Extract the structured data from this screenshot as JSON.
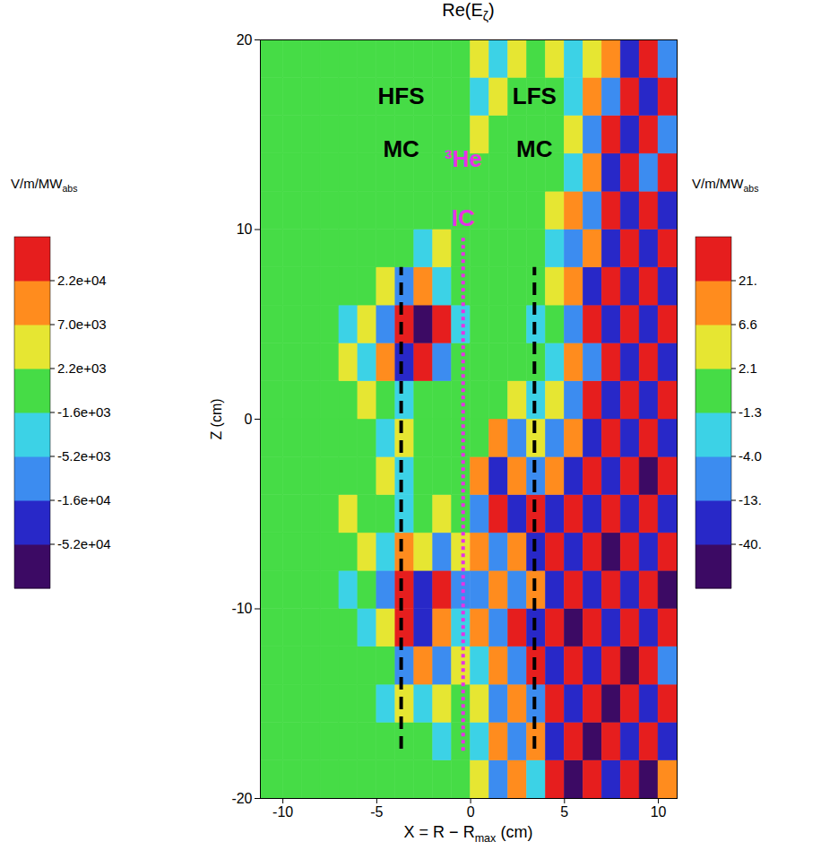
{
  "chart_data": {
    "type": "heatmap",
    "title": [
      "Re(E",
      "ζ",
      ")"
    ],
    "x_label": [
      "X = R − R",
      "max",
      " (cm)"
    ],
    "y_label": "Z (cm)",
    "xlim": [
      -11.2,
      11
    ],
    "xticks": [
      -10,
      -5,
      0,
      5,
      10
    ],
    "ylim": [
      -20,
      20
    ],
    "yticks": [
      -20,
      -10,
      0,
      10,
      20
    ],
    "fields": [
      {
        "x_edges": [
          -11.2,
          -10,
          -9,
          -8,
          -7,
          -6,
          -5,
          -4,
          -3,
          -2,
          -1,
          0
        ],
        "z_edges": [
          -20,
          -18,
          -16,
          -14,
          -12,
          -10,
          -8,
          -6,
          -4,
          -2,
          0,
          2,
          4,
          6,
          8,
          10,
          12,
          14,
          16,
          18,
          20
        ],
        "values": [
          [
            0,
            0,
            0,
            0,
            0,
            0,
            0,
            0,
            0,
            0,
            0
          ],
          [
            0,
            0,
            0,
            0,
            0,
            0,
            0,
            0,
            0,
            -3000,
            0
          ],
          [
            0,
            0,
            0,
            0,
            0,
            0,
            -3000,
            3000,
            -3000,
            3000,
            0
          ],
          [
            0,
            0,
            0,
            0,
            0,
            0,
            0,
            -10000,
            10000,
            -10000,
            3000
          ],
          [
            0,
            0,
            0,
            0,
            0,
            -3000,
            3000,
            30000,
            -30000,
            10000,
            -3000
          ],
          [
            0,
            0,
            0,
            0,
            -3000,
            0,
            -10000,
            30000,
            -30000,
            30000,
            -10000
          ],
          [
            0,
            0,
            0,
            0,
            0,
            3000,
            -3000,
            10000,
            3000,
            -10000,
            3000
          ],
          [
            0,
            0,
            0,
            0,
            3000,
            0,
            0,
            -3000,
            0,
            3000,
            0
          ],
          [
            0,
            0,
            0,
            0,
            0,
            0,
            3000,
            -3000,
            0,
            0,
            0
          ],
          [
            0,
            0,
            0,
            0,
            0,
            0,
            -3000,
            3000,
            0,
            0,
            0
          ],
          [
            0,
            0,
            0,
            0,
            0,
            3000,
            0,
            -3000,
            0,
            0,
            0
          ],
          [
            0,
            0,
            0,
            0,
            3000,
            -3000,
            10000,
            -30000,
            30000,
            -10000,
            0
          ],
          [
            0,
            0,
            0,
            0,
            -3000,
            3000,
            -10000,
            30000,
            -60000,
            30000,
            -3000
          ],
          [
            0,
            0,
            0,
            0,
            0,
            0,
            3000,
            -10000,
            10000,
            -3000,
            0
          ],
          [
            0,
            0,
            0,
            0,
            0,
            0,
            0,
            0,
            -3000,
            3000,
            0
          ],
          [
            0,
            0,
            0,
            0,
            0,
            0,
            0,
            0,
            0,
            0,
            0
          ],
          [
            0,
            0,
            0,
            0,
            0,
            0,
            0,
            0,
            0,
            0,
            0
          ],
          [
            0,
            0,
            0,
            0,
            0,
            0,
            0,
            0,
            0,
            0,
            0
          ],
          [
            0,
            0,
            0,
            0,
            0,
            0,
            0,
            0,
            0,
            0,
            0
          ],
          [
            0,
            0,
            0,
            0,
            0,
            0,
            0,
            0,
            0,
            0,
            0
          ]
        ],
        "colorbar": {
          "unit": [
            "V/m/MW",
            "abs"
          ],
          "colors": [
            "#3c0a64",
            "#2828c8",
            "#3c8cf0",
            "#3cd2e6",
            "#46dc46",
            "#e6e632",
            "#ff8c1e",
            "#e61e1e"
          ],
          "ticks": [
            {
              "value": -52000,
              "label": "-5.2e+04"
            },
            {
              "value": -16000,
              "label": "-1.6e+04"
            },
            {
              "value": -5200,
              "label": "-5.2e+03"
            },
            {
              "value": -1600,
              "label": "-1.6e+03"
            },
            {
              "value": 2200,
              "label": "2.2e+03"
            },
            {
              "value": 7000,
              "label": "7.0e+03"
            },
            {
              "value": 22000,
              "label": "2.2e+04"
            }
          ]
        }
      },
      {
        "x_edges": [
          0,
          1,
          2,
          3,
          4,
          5,
          6,
          7,
          8,
          9,
          10,
          11
        ],
        "z_edges": [
          -20,
          -18,
          -16,
          -14,
          -12,
          -10,
          -8,
          -6,
          -4,
          -2,
          0,
          2,
          4,
          6,
          8,
          10,
          12,
          14,
          16,
          18,
          20
        ],
        "values": [
          [
            3,
            -10,
            10,
            -3,
            30,
            -60,
            30,
            -30,
            30,
            -60,
            10
          ],
          [
            -3,
            10,
            -10,
            10,
            -30,
            30,
            -60,
            30,
            -30,
            30,
            -30
          ],
          [
            3,
            -10,
            10,
            -10,
            30,
            -30,
            30,
            -60,
            30,
            -30,
            30
          ],
          [
            -3,
            10,
            -10,
            30,
            -30,
            30,
            -30,
            30,
            -60,
            30,
            -10
          ],
          [
            10,
            -10,
            30,
            -30,
            30,
            -60,
            30,
            -30,
            30,
            -30,
            30
          ],
          [
            -10,
            10,
            -10,
            10,
            -30,
            30,
            -30,
            30,
            -30,
            30,
            -60
          ],
          [
            10,
            -10,
            10,
            -30,
            30,
            -30,
            30,
            -60,
            30,
            -30,
            30
          ],
          [
            -10,
            30,
            -30,
            30,
            -30,
            30,
            -30,
            30,
            -30,
            30,
            -30
          ],
          [
            10,
            -30,
            10,
            -10,
            10,
            -30,
            30,
            -30,
            30,
            -60,
            30
          ],
          [
            0,
            10,
            -10,
            3,
            -10,
            10,
            -30,
            30,
            -30,
            30,
            -30
          ],
          [
            0,
            0,
            3,
            -3,
            3,
            -10,
            30,
            -30,
            30,
            -30,
            30
          ],
          [
            0,
            0,
            0,
            0,
            -3,
            10,
            -10,
            30,
            -30,
            30,
            -30
          ],
          [
            0,
            0,
            0,
            -3,
            0,
            -10,
            30,
            -30,
            30,
            -30,
            30
          ],
          [
            0,
            0,
            0,
            0,
            3,
            10,
            -30,
            30,
            -30,
            30,
            -30
          ],
          [
            0,
            0,
            0,
            0,
            -3,
            -10,
            10,
            -30,
            30,
            -30,
            30
          ],
          [
            0,
            0,
            0,
            0,
            3,
            10,
            -10,
            30,
            -30,
            30,
            -30
          ],
          [
            0,
            0,
            0,
            0,
            0,
            -3,
            10,
            -30,
            30,
            -10,
            30
          ],
          [
            3,
            0,
            0,
            0,
            0,
            3,
            -10,
            30,
            -30,
            30,
            -10
          ],
          [
            -3,
            3,
            0,
            0,
            0,
            -3,
            10,
            -10,
            30,
            -30,
            30
          ],
          [
            3,
            -3,
            3,
            0,
            3,
            -3,
            3,
            10,
            -30,
            30,
            -10
          ]
        ],
        "colorbar": {
          "unit": [
            "V/m/MW",
            "abs"
          ],
          "colors": [
            "#3c0a64",
            "#2828c8",
            "#3c8cf0",
            "#3cd2e6",
            "#46dc46",
            "#e6e632",
            "#ff8c1e",
            "#e61e1e"
          ],
          "ticks": [
            {
              "value": -40,
              "label": "-40."
            },
            {
              "value": -13,
              "label": "-13."
            },
            {
              "value": -4,
              "label": "-4.0"
            },
            -1.3,
            2.1,
            6.6,
            {
              "value": 21,
              "label": "21."
            }
          ]
        }
      }
    ],
    "annotations": [
      {
        "labels": [
          "HFS",
          "MC"
        ],
        "text_z": [
          17,
          14.2
        ],
        "x": -3.7,
        "z": [
          -17.4,
          8
        ],
        "color": "#000000",
        "line_style": "dashed"
      },
      {
        "labels": [
          "LFS",
          "MC"
        ],
        "text_z": [
          17,
          14.2
        ],
        "x": 3.4,
        "z": [
          -17.4,
          8
        ],
        "color": "#000000",
        "line_style": "dashed"
      },
      {
        "labels": [
          "³He",
          "IC"
        ],
        "text_z": [
          13.7,
          10.6
        ],
        "x": -0.4,
        "z": [
          -17.5,
          9.7
        ],
        "color": "#e632e6",
        "line_style": "dotted"
      }
    ]
  }
}
